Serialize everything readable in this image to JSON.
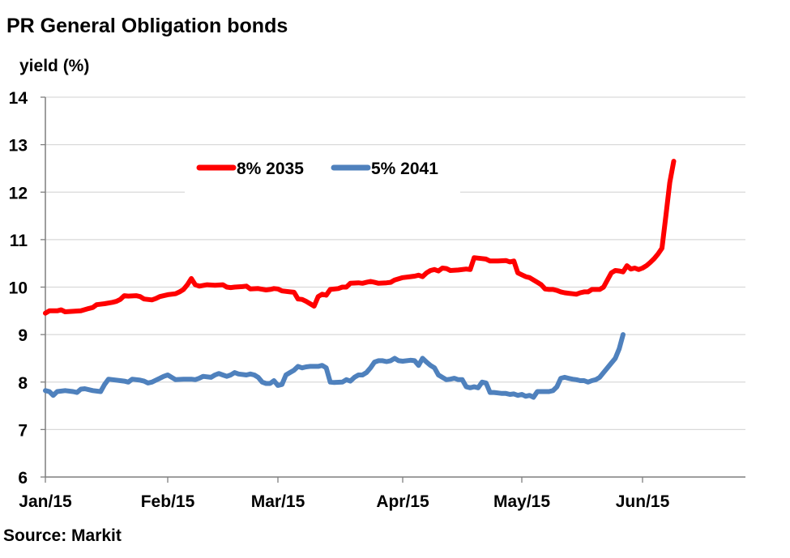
{
  "chart_data": {
    "type": "line",
    "title": "PR General Obligation bonds",
    "ylabel": "yield (%)",
    "xlabel": "",
    "source": "Source: Markit",
    "ylim": [
      6,
      14
    ],
    "yticks": [
      6,
      7,
      8,
      9,
      10,
      11,
      12,
      13,
      14
    ],
    "xlim": [
      0,
      178
    ],
    "xticks": [
      {
        "label": "Jan/15",
        "x": 0
      },
      {
        "label": "Feb/15",
        "x": 31
      },
      {
        "label": "Mar/15",
        "x": 59
      },
      {
        "label": "Apr/15",
        "x": 90
      },
      {
        "label": "May/15",
        "x": 120
      },
      {
        "label": "Jun/15",
        "x": 151
      }
    ],
    "grid": true,
    "legend": "top-center",
    "series": [
      {
        "name": "8% 2035",
        "color": "#ff0000",
        "points": [
          [
            0,
            9.45
          ],
          [
            1,
            9.5
          ],
          [
            3,
            9.5
          ],
          [
            4,
            9.52
          ],
          [
            5,
            9.48
          ],
          [
            7,
            9.49
          ],
          [
            9,
            9.5
          ],
          [
            11,
            9.55
          ],
          [
            12,
            9.57
          ],
          [
            13,
            9.63
          ],
          [
            15,
            9.65
          ],
          [
            17,
            9.68
          ],
          [
            18,
            9.7
          ],
          [
            19,
            9.74
          ],
          [
            20,
            9.82
          ],
          [
            21,
            9.81
          ],
          [
            23,
            9.82
          ],
          [
            24,
            9.8
          ],
          [
            25,
            9.75
          ],
          [
            27,
            9.73
          ],
          [
            28,
            9.76
          ],
          [
            29,
            9.8
          ],
          [
            31,
            9.84
          ],
          [
            33,
            9.86
          ],
          [
            34,
            9.9
          ],
          [
            35,
            9.95
          ],
          [
            36,
            10.05
          ],
          [
            37,
            10.18
          ],
          [
            38,
            10.05
          ],
          [
            39,
            10.02
          ],
          [
            41,
            10.05
          ],
          [
            43,
            10.04
          ],
          [
            45,
            10.05
          ],
          [
            46,
            10.0
          ],
          [
            47,
            9.99
          ],
          [
            48,
            10.0
          ],
          [
            50,
            10.01
          ],
          [
            51,
            10.02
          ],
          [
            52,
            9.96
          ],
          [
            54,
            9.97
          ],
          [
            56,
            9.94
          ],
          [
            57,
            9.95
          ],
          [
            58,
            9.97
          ],
          [
            59,
            9.96
          ],
          [
            60,
            9.92
          ],
          [
            62,
            9.9
          ],
          [
            63,
            9.89
          ],
          [
            64,
            9.75
          ],
          [
            65,
            9.74
          ],
          [
            66,
            9.7
          ],
          [
            67,
            9.65
          ],
          [
            68,
            9.6
          ],
          [
            69,
            9.8
          ],
          [
            70,
            9.85
          ],
          [
            71,
            9.83
          ],
          [
            72,
            9.95
          ],
          [
            74,
            9.97
          ],
          [
            75,
            10.0
          ],
          [
            76,
            10.0
          ],
          [
            77,
            10.08
          ],
          [
            79,
            10.09
          ],
          [
            80,
            10.08
          ],
          [
            81,
            10.1
          ],
          [
            82,
            10.12
          ],
          [
            83,
            10.1
          ],
          [
            84,
            10.08
          ],
          [
            86,
            10.09
          ],
          [
            87,
            10.1
          ],
          [
            88,
            10.15
          ],
          [
            90,
            10.2
          ],
          [
            92,
            10.22
          ],
          [
            93,
            10.23
          ],
          [
            94,
            10.25
          ],
          [
            95,
            10.22
          ],
          [
            96,
            10.3
          ],
          [
            97,
            10.35
          ],
          [
            98,
            10.37
          ],
          [
            99,
            10.34
          ],
          [
            100,
            10.4
          ],
          [
            101,
            10.39
          ],
          [
            102,
            10.35
          ],
          [
            104,
            10.36
          ],
          [
            106,
            10.38
          ],
          [
            107,
            10.37
          ],
          [
            108,
            10.62
          ],
          [
            110,
            10.6
          ],
          [
            111,
            10.59
          ],
          [
            112,
            10.55
          ],
          [
            113,
            10.55
          ],
          [
            114,
            10.55
          ],
          [
            116,
            10.56
          ],
          [
            117,
            10.53
          ],
          [
            118,
            10.55
          ],
          [
            119,
            10.3
          ],
          [
            120,
            10.26
          ],
          [
            121,
            10.22
          ],
          [
            122,
            10.2
          ],
          [
            123,
            10.15
          ],
          [
            124,
            10.1
          ],
          [
            125,
            10.05
          ],
          [
            126,
            9.96
          ],
          [
            127,
            9.95
          ],
          [
            128,
            9.95
          ],
          [
            129,
            9.93
          ],
          [
            130,
            9.9
          ],
          [
            131,
            9.88
          ],
          [
            132,
            9.87
          ],
          [
            133,
            9.86
          ],
          [
            134,
            9.85
          ],
          [
            135,
            9.88
          ],
          [
            136,
            9.9
          ],
          [
            137,
            9.9
          ],
          [
            138,
            9.95
          ],
          [
            139,
            9.95
          ],
          [
            140,
            9.95
          ],
          [
            141,
            10.0
          ],
          [
            142,
            10.15
          ],
          [
            143,
            10.3
          ],
          [
            144,
            10.35
          ],
          [
            145,
            10.34
          ],
          [
            146,
            10.32
          ],
          [
            147,
            10.45
          ],
          [
            148,
            10.38
          ],
          [
            149,
            10.4
          ],
          [
            150,
            10.37
          ],
          [
            151,
            10.4
          ],
          [
            152,
            10.45
          ],
          [
            153,
            10.52
          ],
          [
            154,
            10.6
          ],
          [
            155,
            10.7
          ],
          [
            156,
            10.82
          ],
          [
            157,
            11.5
          ],
          [
            158,
            12.2
          ],
          [
            159,
            12.65
          ]
        ]
      },
      {
        "name": "5% 2041",
        "color": "#4f81bd",
        "points": [
          [
            0,
            7.82
          ],
          [
            1,
            7.8
          ],
          [
            2,
            7.72
          ],
          [
            3,
            7.8
          ],
          [
            5,
            7.82
          ],
          [
            7,
            7.8
          ],
          [
            8,
            7.78
          ],
          [
            9,
            7.85
          ],
          [
            10,
            7.86
          ],
          [
            12,
            7.82
          ],
          [
            14,
            7.8
          ],
          [
            15,
            7.95
          ],
          [
            16,
            8.06
          ],
          [
            17,
            8.05
          ],
          [
            19,
            8.03
          ],
          [
            20,
            8.02
          ],
          [
            21,
            8.0
          ],
          [
            22,
            8.06
          ],
          [
            24,
            8.04
          ],
          [
            25,
            8.02
          ],
          [
            26,
            7.98
          ],
          [
            27,
            8.0
          ],
          [
            28,
            8.04
          ],
          [
            29,
            8.08
          ],
          [
            30,
            8.12
          ],
          [
            31,
            8.15
          ],
          [
            32,
            8.1
          ],
          [
            33,
            8.05
          ],
          [
            35,
            8.06
          ],
          [
            37,
            8.06
          ],
          [
            38,
            8.05
          ],
          [
            39,
            8.08
          ],
          [
            40,
            8.12
          ],
          [
            42,
            8.1
          ],
          [
            43,
            8.15
          ],
          [
            44,
            8.18
          ],
          [
            45,
            8.15
          ],
          [
            46,
            8.12
          ],
          [
            47,
            8.15
          ],
          [
            48,
            8.2
          ],
          [
            49,
            8.17
          ],
          [
            51,
            8.15
          ],
          [
            52,
            8.17
          ],
          [
            53,
            8.15
          ],
          [
            54,
            8.1
          ],
          [
            55,
            8.0
          ],
          [
            56,
            7.97
          ],
          [
            57,
            7.97
          ],
          [
            58,
            8.03
          ],
          [
            59,
            7.93
          ],
          [
            60,
            7.95
          ],
          [
            61,
            8.15
          ],
          [
            62,
            8.2
          ],
          [
            63,
            8.25
          ],
          [
            64,
            8.33
          ],
          [
            65,
            8.3
          ],
          [
            66,
            8.32
          ],
          [
            67,
            8.33
          ],
          [
            69,
            8.33
          ],
          [
            70,
            8.35
          ],
          [
            71,
            8.3
          ],
          [
            72,
            8.0
          ],
          [
            73,
            7.99
          ],
          [
            75,
            8.0
          ],
          [
            76,
            8.05
          ],
          [
            77,
            8.02
          ],
          [
            78,
            8.1
          ],
          [
            79,
            8.15
          ],
          [
            80,
            8.15
          ],
          [
            81,
            8.2
          ],
          [
            82,
            8.3
          ],
          [
            83,
            8.42
          ],
          [
            84,
            8.45
          ],
          [
            85,
            8.45
          ],
          [
            86,
            8.43
          ],
          [
            87,
            8.45
          ],
          [
            88,
            8.5
          ],
          [
            89,
            8.45
          ],
          [
            90,
            8.44
          ],
          [
            92,
            8.46
          ],
          [
            93,
            8.45
          ],
          [
            94,
            8.35
          ],
          [
            95,
            8.5
          ],
          [
            96,
            8.42
          ],
          [
            97,
            8.35
          ],
          [
            98,
            8.3
          ],
          [
            99,
            8.15
          ],
          [
            100,
            8.1
          ],
          [
            101,
            8.05
          ],
          [
            102,
            8.06
          ],
          [
            103,
            8.08
          ],
          [
            104,
            8.05
          ],
          [
            105,
            8.05
          ],
          [
            106,
            7.9
          ],
          [
            107,
            7.88
          ],
          [
            108,
            7.9
          ],
          [
            109,
            7.88
          ],
          [
            110,
            8.0
          ],
          [
            111,
            7.98
          ],
          [
            112,
            7.78
          ],
          [
            113,
            7.78
          ],
          [
            114,
            7.77
          ],
          [
            115,
            7.76
          ],
          [
            116,
            7.76
          ],
          [
            117,
            7.74
          ],
          [
            118,
            7.75
          ],
          [
            119,
            7.72
          ],
          [
            120,
            7.74
          ],
          [
            121,
            7.7
          ],
          [
            122,
            7.72
          ],
          [
            123,
            7.68
          ],
          [
            124,
            7.8
          ],
          [
            125,
            7.8
          ],
          [
            126,
            7.8
          ],
          [
            127,
            7.8
          ],
          [
            128,
            7.82
          ],
          [
            129,
            7.9
          ],
          [
            130,
            8.08
          ],
          [
            131,
            8.1
          ],
          [
            132,
            8.08
          ],
          [
            133,
            8.06
          ],
          [
            134,
            8.05
          ],
          [
            135,
            8.03
          ],
          [
            136,
            8.03
          ],
          [
            137,
            8.0
          ],
          [
            138,
            8.03
          ],
          [
            139,
            8.05
          ],
          [
            140,
            8.1
          ],
          [
            141,
            8.2
          ],
          [
            142,
            8.3
          ],
          [
            143,
            8.4
          ],
          [
            144,
            8.5
          ],
          [
            145,
            8.7
          ],
          [
            146,
            9.0
          ]
        ]
      }
    ]
  }
}
